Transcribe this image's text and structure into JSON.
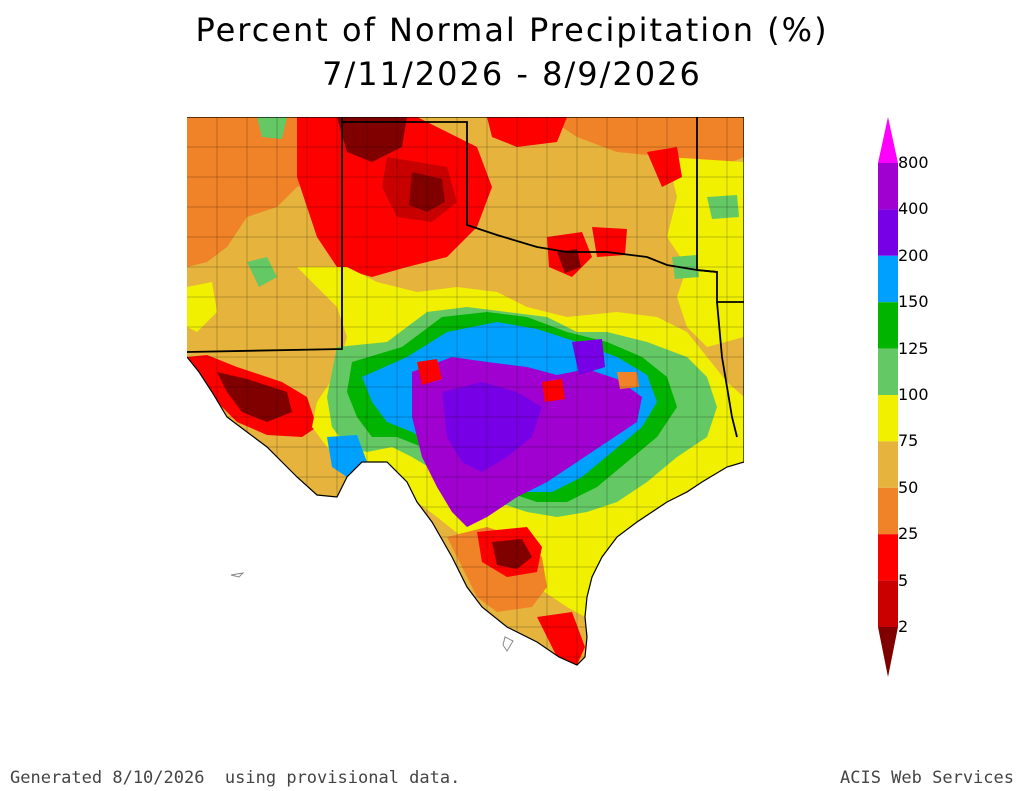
{
  "title": {
    "line1": "Percent of Normal Precipitation (%)",
    "line2": "7/11/2026 - 8/9/2026"
  },
  "legend": {
    "labels": [
      "800",
      "400",
      "200",
      "150",
      "125",
      "100",
      "75",
      "50",
      "25",
      "5",
      "2"
    ],
    "colors": [
      "#ff00ff",
      "#a000d0",
      "#7800e6",
      "#00a0ff",
      "#00b400",
      "#64c864",
      "#f0f000",
      "#e6b43c",
      "#f08228",
      "#ff0000",
      "#c80000",
      "#800000"
    ]
  },
  "map": {
    "region": "Texas and surrounding states",
    "colors": {
      "background": "#e6b43c",
      "darkred": "#800000",
      "red": "#ff0000",
      "orange": "#f08228",
      "tan": "#e6b43c",
      "yellow": "#f0f000",
      "lightgreen": "#64c864",
      "green": "#00b400",
      "blue": "#00a0ff",
      "purple": "#a000d0",
      "violet": "#7800e6"
    }
  },
  "footer": {
    "left": "Generated 8/10/2026  using provisional data.",
    "right": "ACIS Web Services"
  }
}
